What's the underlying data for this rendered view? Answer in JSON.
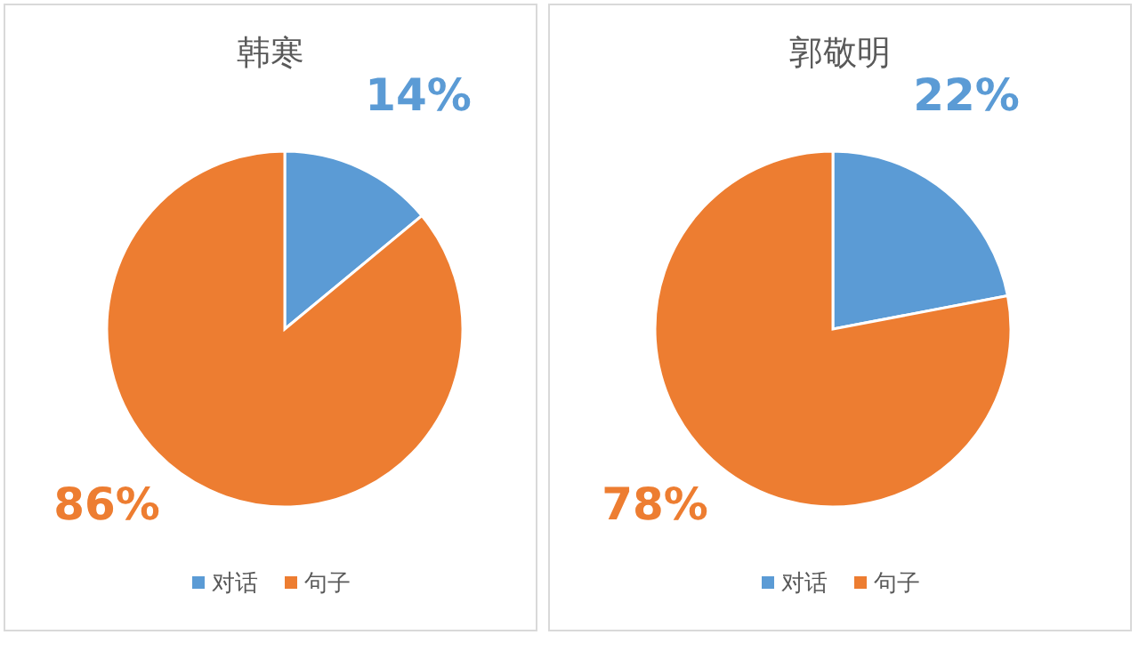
{
  "chart_data": [
    {
      "type": "pie",
      "title": "韩寒",
      "categories": [
        "对话",
        "句子"
      ],
      "values": [
        14,
        86
      ],
      "colors": [
        "#5b9bd5",
        "#ed7d31"
      ],
      "value_labels": [
        "14%",
        "86%"
      ],
      "legend": "bottom"
    },
    {
      "type": "pie",
      "title": "郭敬明",
      "categories": [
        "对话",
        "句子"
      ],
      "values": [
        22,
        78
      ],
      "colors": [
        "#5b9bd5",
        "#ed7d31"
      ],
      "value_labels": [
        "22%",
        "78%"
      ],
      "legend": "bottom"
    }
  ]
}
